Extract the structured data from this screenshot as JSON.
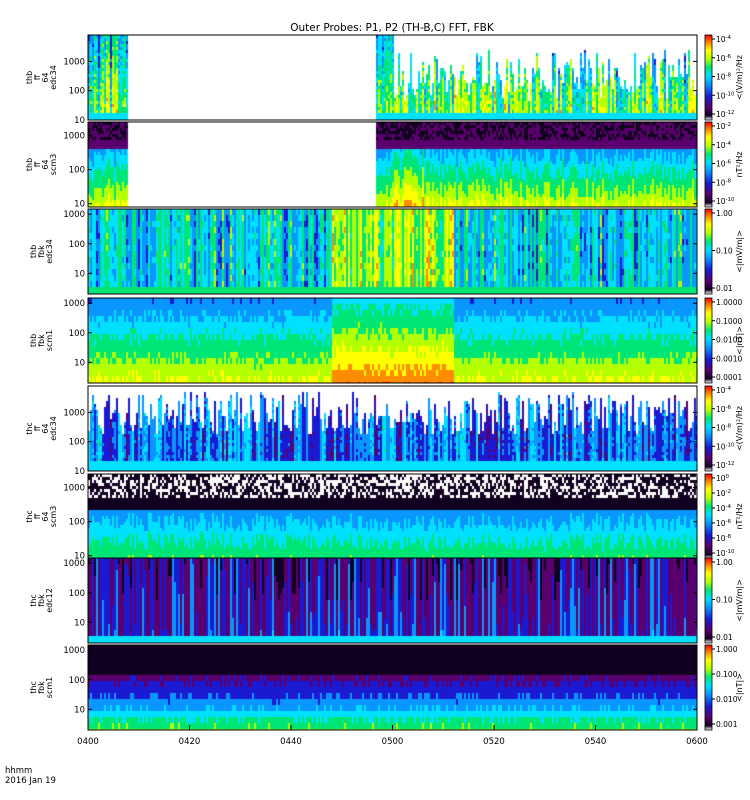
{
  "chart_data": {
    "type": "heatmap",
    "title": "Outer Probes: P1, P2 (TH-B,C) FFT, FBK",
    "x_tick_labels": [
      "0400",
      "0420",
      "0440",
      "0500",
      "0520",
      "0540",
      "0600"
    ],
    "x_range": [
      "04:00",
      "06:00"
    ],
    "x_axis_label_lines": [
      "hhmm",
      "2016 Jan 19"
    ],
    "panels": [
      {
        "ylabel_lines": [
          "thb",
          "ff",
          "64",
          "edc34"
        ],
        "yticks": [
          "1000",
          "100",
          "10"
        ],
        "ytick_values": [
          1000,
          100,
          10
        ],
        "y_range": [
          10,
          8000
        ],
        "y_scale": "log",
        "cbar_label": "<(V/m)²/Hz",
        "cbar_ticks": [
          {
            "m": "10",
            "e": "-4"
          },
          {
            "m": "10",
            "e": "-6"
          },
          {
            "m": "10",
            "e": "-8"
          },
          {
            "m": "10",
            "e": "-10"
          },
          {
            "m": "10",
            "e": "-12"
          }
        ]
      },
      {
        "ylabel_lines": [
          "thb",
          "ff",
          "64",
          "scm3"
        ],
        "yticks": [
          "1000",
          "100",
          "10"
        ],
        "ytick_values": [
          1000,
          100,
          10
        ],
        "y_range": [
          8,
          2500
        ],
        "y_scale": "log",
        "cbar_label": "nT²/Hz",
        "cbar_ticks": [
          {
            "m": "10",
            "e": "-2"
          },
          {
            "m": "10",
            "e": "-4"
          },
          {
            "m": "10",
            "e": "-6"
          },
          {
            "m": "10",
            "e": "-8"
          },
          {
            "m": "10",
            "e": "-10"
          }
        ]
      },
      {
        "ylabel_lines": [
          "thb",
          "fbk",
          "edc34"
        ],
        "yticks": [
          "1000",
          "100",
          "10"
        ],
        "ytick_values": [
          1000,
          100,
          10
        ],
        "y_range": [
          2,
          1500
        ],
        "y_scale": "log",
        "cbar_label": "<|mV/m|>",
        "cbar_ticks": [
          {
            "m": "1.00"
          },
          {
            "m": "0.10"
          },
          {
            "m": "0.01"
          }
        ]
      },
      {
        "ylabel_lines": [
          "thb",
          "fbk",
          "scm1"
        ],
        "yticks": [
          "1000",
          "100",
          "10"
        ],
        "ytick_values": [
          1000,
          100,
          10
        ],
        "y_range": [
          2,
          1500
        ],
        "y_scale": "log",
        "cbar_label": "<|nT|>",
        "cbar_ticks": [
          {
            "m": "1.0000"
          },
          {
            "m": "0.1000"
          },
          {
            "m": "0.0100"
          },
          {
            "m": "0.0010"
          },
          {
            "m": "0.0001"
          }
        ]
      },
      {
        "ylabel_lines": [
          "thc",
          "ff",
          "64",
          "edc34"
        ],
        "yticks": [
          "1000",
          "100",
          "10"
        ],
        "ytick_values": [
          1000,
          100,
          10
        ],
        "y_range": [
          10,
          8000
        ],
        "y_scale": "log",
        "cbar_label": "<(V/m)²/Hz",
        "cbar_ticks": [
          {
            "m": "10",
            "e": "-4"
          },
          {
            "m": "10",
            "e": "-6"
          },
          {
            "m": "10",
            "e": "-8"
          },
          {
            "m": "10",
            "e": "-10"
          },
          {
            "m": "10",
            "e": "-12"
          }
        ]
      },
      {
        "ylabel_lines": [
          "thc",
          "ff",
          "64",
          "scm3"
        ],
        "yticks": [
          "1000",
          "100",
          "10"
        ],
        "ytick_values": [
          1000,
          100,
          10
        ],
        "y_range": [
          8,
          2500
        ],
        "y_scale": "log",
        "cbar_label": "nT²/Hz",
        "cbar_ticks": [
          {
            "m": "10",
            "e": "0"
          },
          {
            "m": "10",
            "e": "-2"
          },
          {
            "m": "10",
            "e": "-4"
          },
          {
            "m": "10",
            "e": "-6"
          },
          {
            "m": "10",
            "e": "-8"
          },
          {
            "m": "10",
            "e": "-10"
          }
        ]
      },
      {
        "ylabel_lines": [
          "thc",
          "fbk",
          "edc12"
        ],
        "yticks": [
          "1000",
          "100",
          "10"
        ],
        "ytick_values": [
          1000,
          100,
          10
        ],
        "y_range": [
          2,
          1500
        ],
        "y_scale": "log",
        "cbar_label": "<|mV/m|>",
        "cbar_ticks": [
          {
            "m": "1.00"
          },
          {
            "m": "0.10"
          },
          {
            "m": "0.01"
          }
        ]
      },
      {
        "ylabel_lines": [
          "thc",
          "fbk",
          "scm1"
        ],
        "yticks": [
          "1000",
          "100",
          "10"
        ],
        "ytick_values": [
          1000,
          100,
          10
        ],
        "y_range": [
          2,
          1500
        ],
        "y_scale": "log",
        "cbar_label": "<|nT|>",
        "cbar_ticks": [
          {
            "m": "1.000"
          },
          {
            "m": "0.100"
          },
          {
            "m": "0.010"
          },
          {
            "m": "0.001"
          }
        ]
      }
    ]
  }
}
